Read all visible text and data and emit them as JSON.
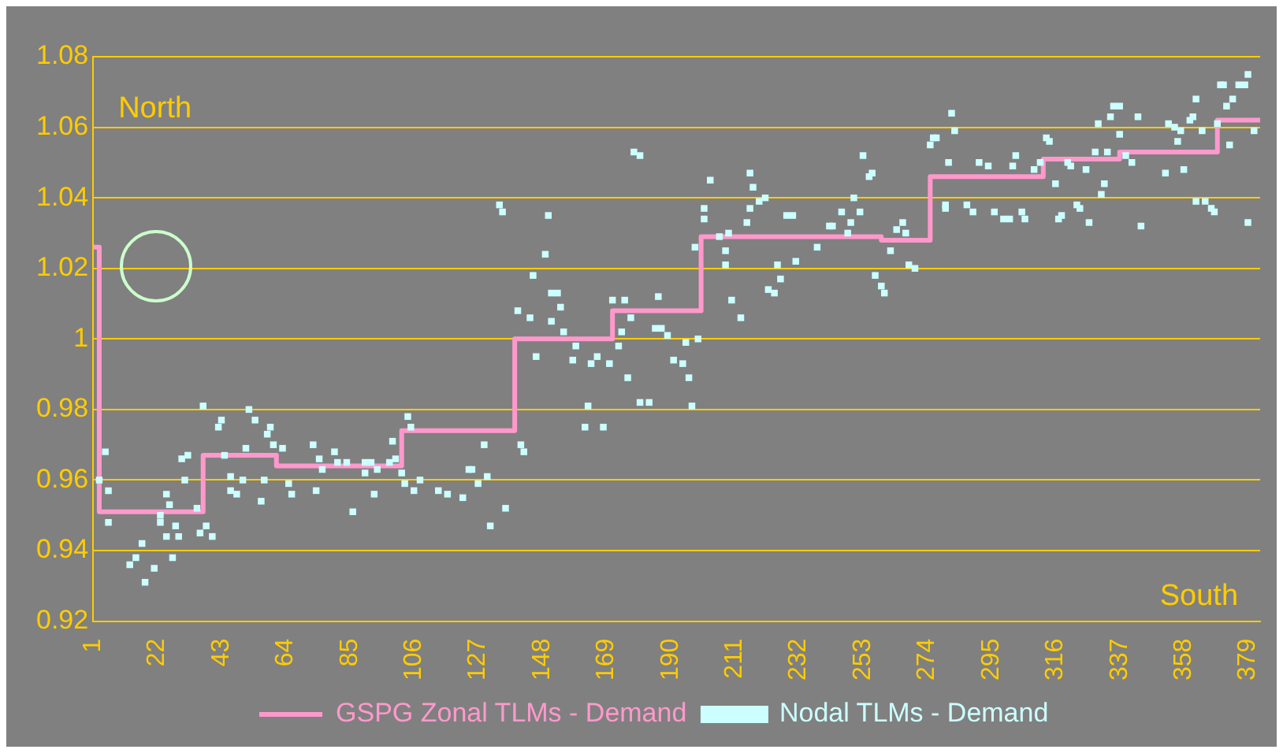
{
  "chart_data": {
    "type": "scatter",
    "xlim": [
      1,
      383
    ],
    "xticks": [
      1,
      22,
      43,
      64,
      85,
      106,
      127,
      148,
      169,
      190,
      211,
      232,
      253,
      274,
      295,
      316,
      337,
      358,
      379
    ],
    "ylim": [
      0.92,
      1.08
    ],
    "yticks": [
      0.92,
      0.94,
      0.96,
      0.98,
      1,
      1.02,
      1.04,
      1.06,
      1.08
    ],
    "grid": "y",
    "legend": "bottom",
    "annotations": [
      "North",
      "South"
    ],
    "series": [
      {
        "name": "GSPG Zonal TLMs - Demand",
        "type": "step",
        "color": "#ff99cc",
        "marker": "none",
        "x": [
          1,
          3,
          37,
          61,
          102,
          139,
          171,
          200,
          259,
          275,
          312,
          337,
          369,
          383
        ],
        "values": [
          1.026,
          0.951,
          0.967,
          0.964,
          0.974,
          1.0,
          1.008,
          1.029,
          1.028,
          1.046,
          1.051,
          1.053,
          1.062,
          1.062
        ]
      },
      {
        "name": "Nodal TLMs - Demand",
        "type": "scatter",
        "color": "#ccffff",
        "marker": "square",
        "x": [
          3,
          5,
          6,
          6,
          13,
          15,
          17,
          18,
          21,
          23,
          23,
          25,
          26,
          25,
          27,
          28,
          29,
          30,
          32,
          31,
          35,
          36,
          38,
          40,
          37,
          42,
          43,
          44,
          46,
          46,
          48,
          50,
          51,
          52,
          54,
          56,
          57,
          58,
          59,
          60,
          63,
          65,
          66,
          73,
          74,
          75,
          76,
          80,
          81,
          84,
          86,
          90,
          90,
          92,
          93,
          94,
          98,
          99,
          100,
          102,
          103,
          104,
          105,
          106,
          108,
          114,
          117,
          122,
          124,
          129,
          125,
          127,
          130,
          131,
          136,
          134,
          135,
          141,
          142,
          146,
          145,
          149,
          150,
          140,
          144,
          151,
          153,
          154,
          151,
          155,
          158,
          159,
          163,
          162,
          164,
          166,
          168,
          170,
          173,
          174,
          171,
          175,
          177,
          178,
          180,
          176,
          180,
          183,
          186,
          185,
          187,
          189,
          191,
          194,
          195,
          196,
          197,
          199,
          198,
          201,
          201,
          203,
          206,
          209,
          208,
          208,
          210,
          213,
          216,
          217,
          216,
          215,
          219,
          221,
          225,
          226,
          222,
          224,
          228,
          230,
          231,
          238,
          242,
          243,
          246,
          248,
          249,
          250,
          252,
          253,
          255,
          256,
          257,
          259,
          260,
          262,
          264,
          266,
          267,
          268,
          270,
          275,
          276,
          277,
          282,
          283,
          281,
          280,
          280,
          287,
          289,
          291,
          294,
          296,
          299,
          301,
          302,
          303,
          305,
          306,
          309,
          311,
          313,
          314,
          316,
          317,
          318,
          320,
          321,
          323,
          324,
          326,
          327,
          329,
          330,
          331,
          332,
          333,
          334,
          335,
          337,
          337,
          339,
          341,
          343,
          344,
          352,
          353,
          355,
          356,
          357,
          358,
          360,
          361,
          362,
          362,
          364,
          365,
          367,
          368,
          369,
          370,
          371,
          372,
          373,
          374,
          376,
          378,
          379,
          379,
          381
        ],
        "values": [
          0.96,
          0.968,
          0.957,
          0.948,
          0.936,
          0.938,
          0.942,
          0.931,
          0.935,
          0.948,
          0.95,
          0.956,
          0.953,
          0.944,
          0.938,
          0.947,
          0.944,
          0.966,
          0.967,
          0.96,
          0.952,
          0.945,
          0.947,
          0.944,
          0.981,
          0.975,
          0.977,
          0.967,
          0.961,
          0.957,
          0.956,
          0.96,
          0.969,
          0.98,
          0.977,
          0.954,
          0.96,
          0.973,
          0.975,
          0.97,
          0.969,
          0.959,
          0.956,
          0.97,
          0.957,
          0.966,
          0.963,
          0.968,
          0.965,
          0.965,
          0.951,
          0.965,
          0.962,
          0.965,
          0.956,
          0.963,
          0.965,
          0.971,
          0.966,
          0.962,
          0.959,
          0.978,
          0.975,
          0.957,
          0.96,
          0.957,
          0.956,
          0.955,
          0.963,
          0.97,
          0.963,
          0.959,
          0.961,
          0.947,
          0.952,
          1.038,
          1.036,
          0.97,
          0.968,
          0.995,
          1.018,
          1.024,
          1.035,
          1.008,
          1.006,
          1.013,
          1.013,
          1.009,
          1.005,
          1.002,
          0.994,
          0.998,
          0.981,
          0.975,
          0.993,
          0.995,
          0.975,
          0.993,
          0.998,
          1.002,
          1.011,
          1.011,
          1.006,
          1.053,
          1.052,
          0.989,
          0.982,
          0.982,
          1.012,
          1.003,
          1.003,
          1.001,
          0.994,
          0.993,
          0.999,
          0.989,
          0.981,
          1.0,
          1.026,
          1.034,
          1.037,
          1.045,
          1.029,
          1.03,
          1.025,
          1.021,
          1.011,
          1.006,
          1.047,
          1.043,
          1.037,
          1.033,
          1.039,
          1.04,
          1.021,
          1.017,
          1.014,
          1.013,
          1.035,
          1.035,
          1.022,
          1.026,
          1.032,
          1.032,
          1.036,
          1.03,
          1.033,
          1.04,
          1.036,
          1.052,
          1.046,
          1.047,
          1.018,
          1.015,
          1.013,
          1.025,
          1.031,
          1.033,
          1.03,
          1.021,
          1.02,
          1.055,
          1.057,
          1.057,
          1.064,
          1.059,
          1.05,
          1.038,
          1.037,
          1.038,
          1.036,
          1.05,
          1.049,
          1.036,
          1.034,
          1.034,
          1.049,
          1.052,
          1.036,
          1.034,
          1.048,
          1.05,
          1.057,
          1.056,
          1.044,
          1.034,
          1.035,
          1.05,
          1.049,
          1.038,
          1.037,
          1.048,
          1.033,
          1.053,
          1.061,
          1.041,
          1.044,
          1.053,
          1.063,
          1.066,
          1.066,
          1.058,
          1.052,
          1.05,
          1.063,
          1.032,
          1.047,
          1.061,
          1.06,
          1.056,
          1.059,
          1.048,
          1.062,
          1.063,
          1.068,
          1.039,
          1.059,
          1.039,
          1.037,
          1.036,
          1.061,
          1.072,
          1.072,
          1.066,
          1.055,
          1.068,
          1.072,
          1.072,
          1.075,
          1.033,
          1.059
        ]
      }
    ]
  }
}
